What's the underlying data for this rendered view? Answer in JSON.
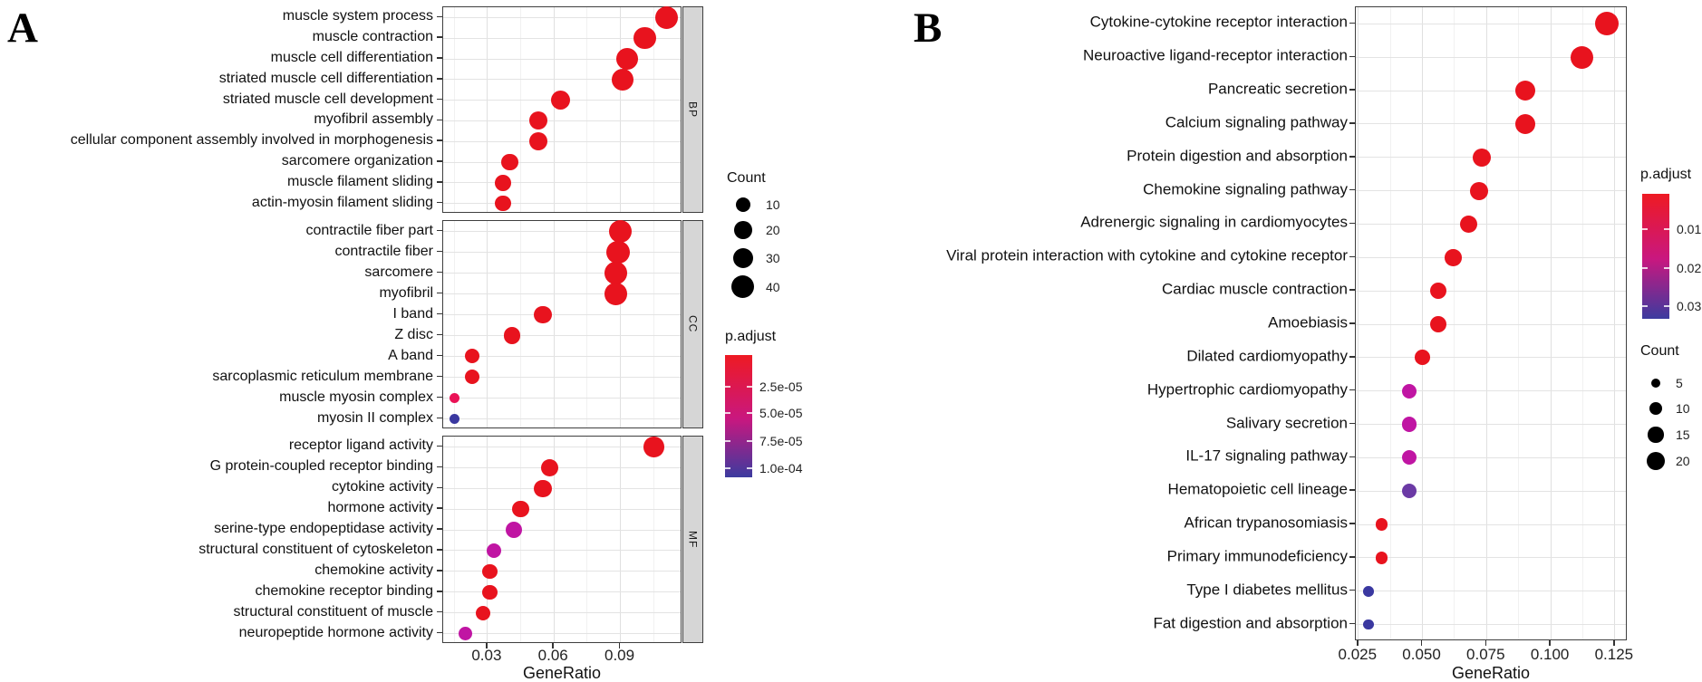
{
  "panels": {
    "a_label": "A",
    "b_label": "B"
  },
  "chart_data": [
    {
      "type": "scatter",
      "panel": "A",
      "title": "",
      "xlabel": "GeneRatio",
      "x_ticks": [
        "0.03",
        "0.06",
        "0.09"
      ],
      "x_tick_values": [
        0.03,
        0.06,
        0.09
      ],
      "xlim": [
        0.01,
        0.118
      ],
      "grid": true,
      "facets": [
        {
          "label": "BP",
          "rows": [
            {
              "label": "muscle system process",
              "gene_ratio": 0.111,
              "count": 40,
              "color": "#e8131e"
            },
            {
              "label": "muscle contraction",
              "gene_ratio": 0.101,
              "count": 37,
              "color": "#e8131e"
            },
            {
              "label": "muscle cell differentiation",
              "gene_ratio": 0.093,
              "count": 35,
              "color": "#e8131e"
            },
            {
              "label": "striated muscle cell differentiation",
              "gene_ratio": 0.091,
              "count": 35,
              "color": "#e8131e"
            },
            {
              "label": "striated muscle cell development",
              "gene_ratio": 0.063,
              "count": 24,
              "color": "#e8131e"
            },
            {
              "label": "myofibril assembly",
              "gene_ratio": 0.053,
              "count": 21,
              "color": "#e8131e"
            },
            {
              "label": "cellular component assembly involved in morphogenesis",
              "gene_ratio": 0.053,
              "count": 21,
              "color": "#e8131e"
            },
            {
              "label": "sarcomere organization",
              "gene_ratio": 0.04,
              "count": 17,
              "color": "#e8131e"
            },
            {
              "label": "muscle filament sliding",
              "gene_ratio": 0.037,
              "count": 14,
              "color": "#e8131e"
            },
            {
              "label": "actin-myosin filament sliding",
              "gene_ratio": 0.037,
              "count": 14,
              "color": "#e8131e"
            }
          ]
        },
        {
          "label": "CC",
          "rows": [
            {
              "label": "contractile fiber part",
              "gene_ratio": 0.09,
              "count": 42,
              "color": "#e8131e"
            },
            {
              "label": "contractile fiber",
              "gene_ratio": 0.089,
              "count": 41,
              "color": "#e8131e"
            },
            {
              "label": "sarcomere",
              "gene_ratio": 0.088,
              "count": 38,
              "color": "#e8131e"
            },
            {
              "label": "myofibril",
              "gene_ratio": 0.088,
              "count": 39,
              "color": "#e8131e"
            },
            {
              "label": "I band",
              "gene_ratio": 0.055,
              "count": 19,
              "color": "#e8131e"
            },
            {
              "label": "Z disc",
              "gene_ratio": 0.041,
              "count": 15,
              "color": "#e8131e"
            },
            {
              "label": "A band",
              "gene_ratio": 0.023,
              "count": 10,
              "color": "#e8131e"
            },
            {
              "label": "sarcoplasmic reticulum membrane",
              "gene_ratio": 0.023,
              "count": 10,
              "color": "#e8131e"
            },
            {
              "label": "muscle myosin complex",
              "gene_ratio": 0.015,
              "count": 2,
              "color": "#ea1256"
            },
            {
              "label": "myosin II complex",
              "gene_ratio": 0.015,
              "count": 2,
              "color": "#3a38a0"
            }
          ]
        },
        {
          "label": "MF",
          "rows": [
            {
              "label": "receptor ligand activity",
              "gene_ratio": 0.105,
              "count": 30,
              "color": "#e8131e"
            },
            {
              "label": "G protein-coupled receptor binding",
              "gene_ratio": 0.058,
              "count": 19,
              "color": "#e8131e"
            },
            {
              "label": "cytokine activity",
              "gene_ratio": 0.055,
              "count": 19,
              "color": "#e8131e"
            },
            {
              "label": "hormone activity",
              "gene_ratio": 0.045,
              "count": 16,
              "color": "#e8131e"
            },
            {
              "label": "serine-type endopeptidase activity",
              "gene_ratio": 0.042,
              "count": 16,
              "color": "#c015a3"
            },
            {
              "label": "structural constituent of cytoskeleton",
              "gene_ratio": 0.033,
              "count": 11,
              "color": "#c015a3"
            },
            {
              "label": "chemokine activity",
              "gene_ratio": 0.031,
              "count": 11,
              "color": "#e8131e"
            },
            {
              "label": "chemokine receptor binding",
              "gene_ratio": 0.031,
              "count": 11,
              "color": "#e8131e"
            },
            {
              "label": "structural constituent of muscle",
              "gene_ratio": 0.028,
              "count": 10,
              "color": "#e8131e"
            },
            {
              "label": "neuropeptide hormone activity",
              "gene_ratio": 0.02,
              "count": 8,
              "color": "#c015a3"
            }
          ]
        }
      ],
      "size_legend": {
        "title": "Count",
        "values": [
          10,
          20,
          30,
          40
        ]
      },
      "color_legend": {
        "title": "p.adjust",
        "ticks": [
          "2.5e-05",
          "5.0e-05",
          "7.5e-05",
          "1.0e-04"
        ],
        "gradient": [
          "#ee1a23",
          "#c9177f",
          "#3c3b9f"
        ]
      }
    },
    {
      "type": "scatter",
      "panel": "B",
      "title": "",
      "xlabel": "GeneRatio",
      "x_ticks": [
        "0.025",
        "0.050",
        "0.075",
        "0.100",
        "0.125"
      ],
      "x_tick_values": [
        0.025,
        0.05,
        0.075,
        0.1,
        0.125
      ],
      "xlim": [
        0.024,
        0.13
      ],
      "grid": true,
      "facets": [
        {
          "label": "",
          "rows": [
            {
              "label": "Cytokine-cytokine receptor interaction",
              "gene_ratio": 0.122,
              "count": 34,
              "color": "#e8131e"
            },
            {
              "label": "Neuroactive ligand-receptor interaction",
              "gene_ratio": 0.112,
              "count": 31,
              "color": "#e8131e"
            },
            {
              "label": "Pancreatic secretion",
              "gene_ratio": 0.09,
              "count": 25,
              "color": "#e8131e"
            },
            {
              "label": "Calcium signaling pathway",
              "gene_ratio": 0.09,
              "count": 25,
              "color": "#e8131e"
            },
            {
              "label": "Protein digestion and absorption",
              "gene_ratio": 0.073,
              "count": 20,
              "color": "#e8131e"
            },
            {
              "label": "Chemokine signaling pathway",
              "gene_ratio": 0.072,
              "count": 20,
              "color": "#e8131e"
            },
            {
              "label": "Adrenergic signaling in cardiomyocytes",
              "gene_ratio": 0.068,
              "count": 19,
              "color": "#e8131e"
            },
            {
              "label": "Viral protein interaction with cytokine and cytokine receptor",
              "gene_ratio": 0.062,
              "count": 17,
              "color": "#e8131e"
            },
            {
              "label": "Cardiac muscle contraction",
              "gene_ratio": 0.056,
              "count": 16,
              "color": "#e8131e"
            },
            {
              "label": "Amoebiasis",
              "gene_ratio": 0.056,
              "count": 16,
              "color": "#e8131e"
            },
            {
              "label": "Dilated cardiomyopathy",
              "gene_ratio": 0.05,
              "count": 14,
              "color": "#e8131e"
            },
            {
              "label": "Hypertrophic cardiomyopathy",
              "gene_ratio": 0.045,
              "count": 13,
              "color": "#c015a3"
            },
            {
              "label": "Salivary secretion",
              "gene_ratio": 0.045,
              "count": 13,
              "color": "#c015a3"
            },
            {
              "label": "IL-17 signaling pathway",
              "gene_ratio": 0.045,
              "count": 13,
              "color": "#c015a3"
            },
            {
              "label": "Hematopoietic cell lineage",
              "gene_ratio": 0.045,
              "count": 13,
              "color": "#6b3aa5"
            },
            {
              "label": "African trypanosomiasis",
              "gene_ratio": 0.034,
              "count": 9,
              "color": "#e8131e"
            },
            {
              "label": "Primary immunodeficiency",
              "gene_ratio": 0.034,
              "count": 9,
              "color": "#e8131e"
            },
            {
              "label": "Type I diabetes mellitus",
              "gene_ratio": 0.029,
              "count": 7,
              "color": "#3a38a0"
            },
            {
              "label": "Fat digestion and absorption",
              "gene_ratio": 0.029,
              "count": 7,
              "color": "#3a38a0"
            }
          ]
        }
      ],
      "size_legend": {
        "title": "Count",
        "values": [
          5,
          10,
          15,
          20
        ]
      },
      "color_legend": {
        "title": "p.adjust",
        "ticks": [
          "0.01",
          "0.02",
          "0.03"
        ],
        "gradient": [
          "#ee1a23",
          "#c9177f",
          "#3c3b9f"
        ]
      }
    }
  ]
}
